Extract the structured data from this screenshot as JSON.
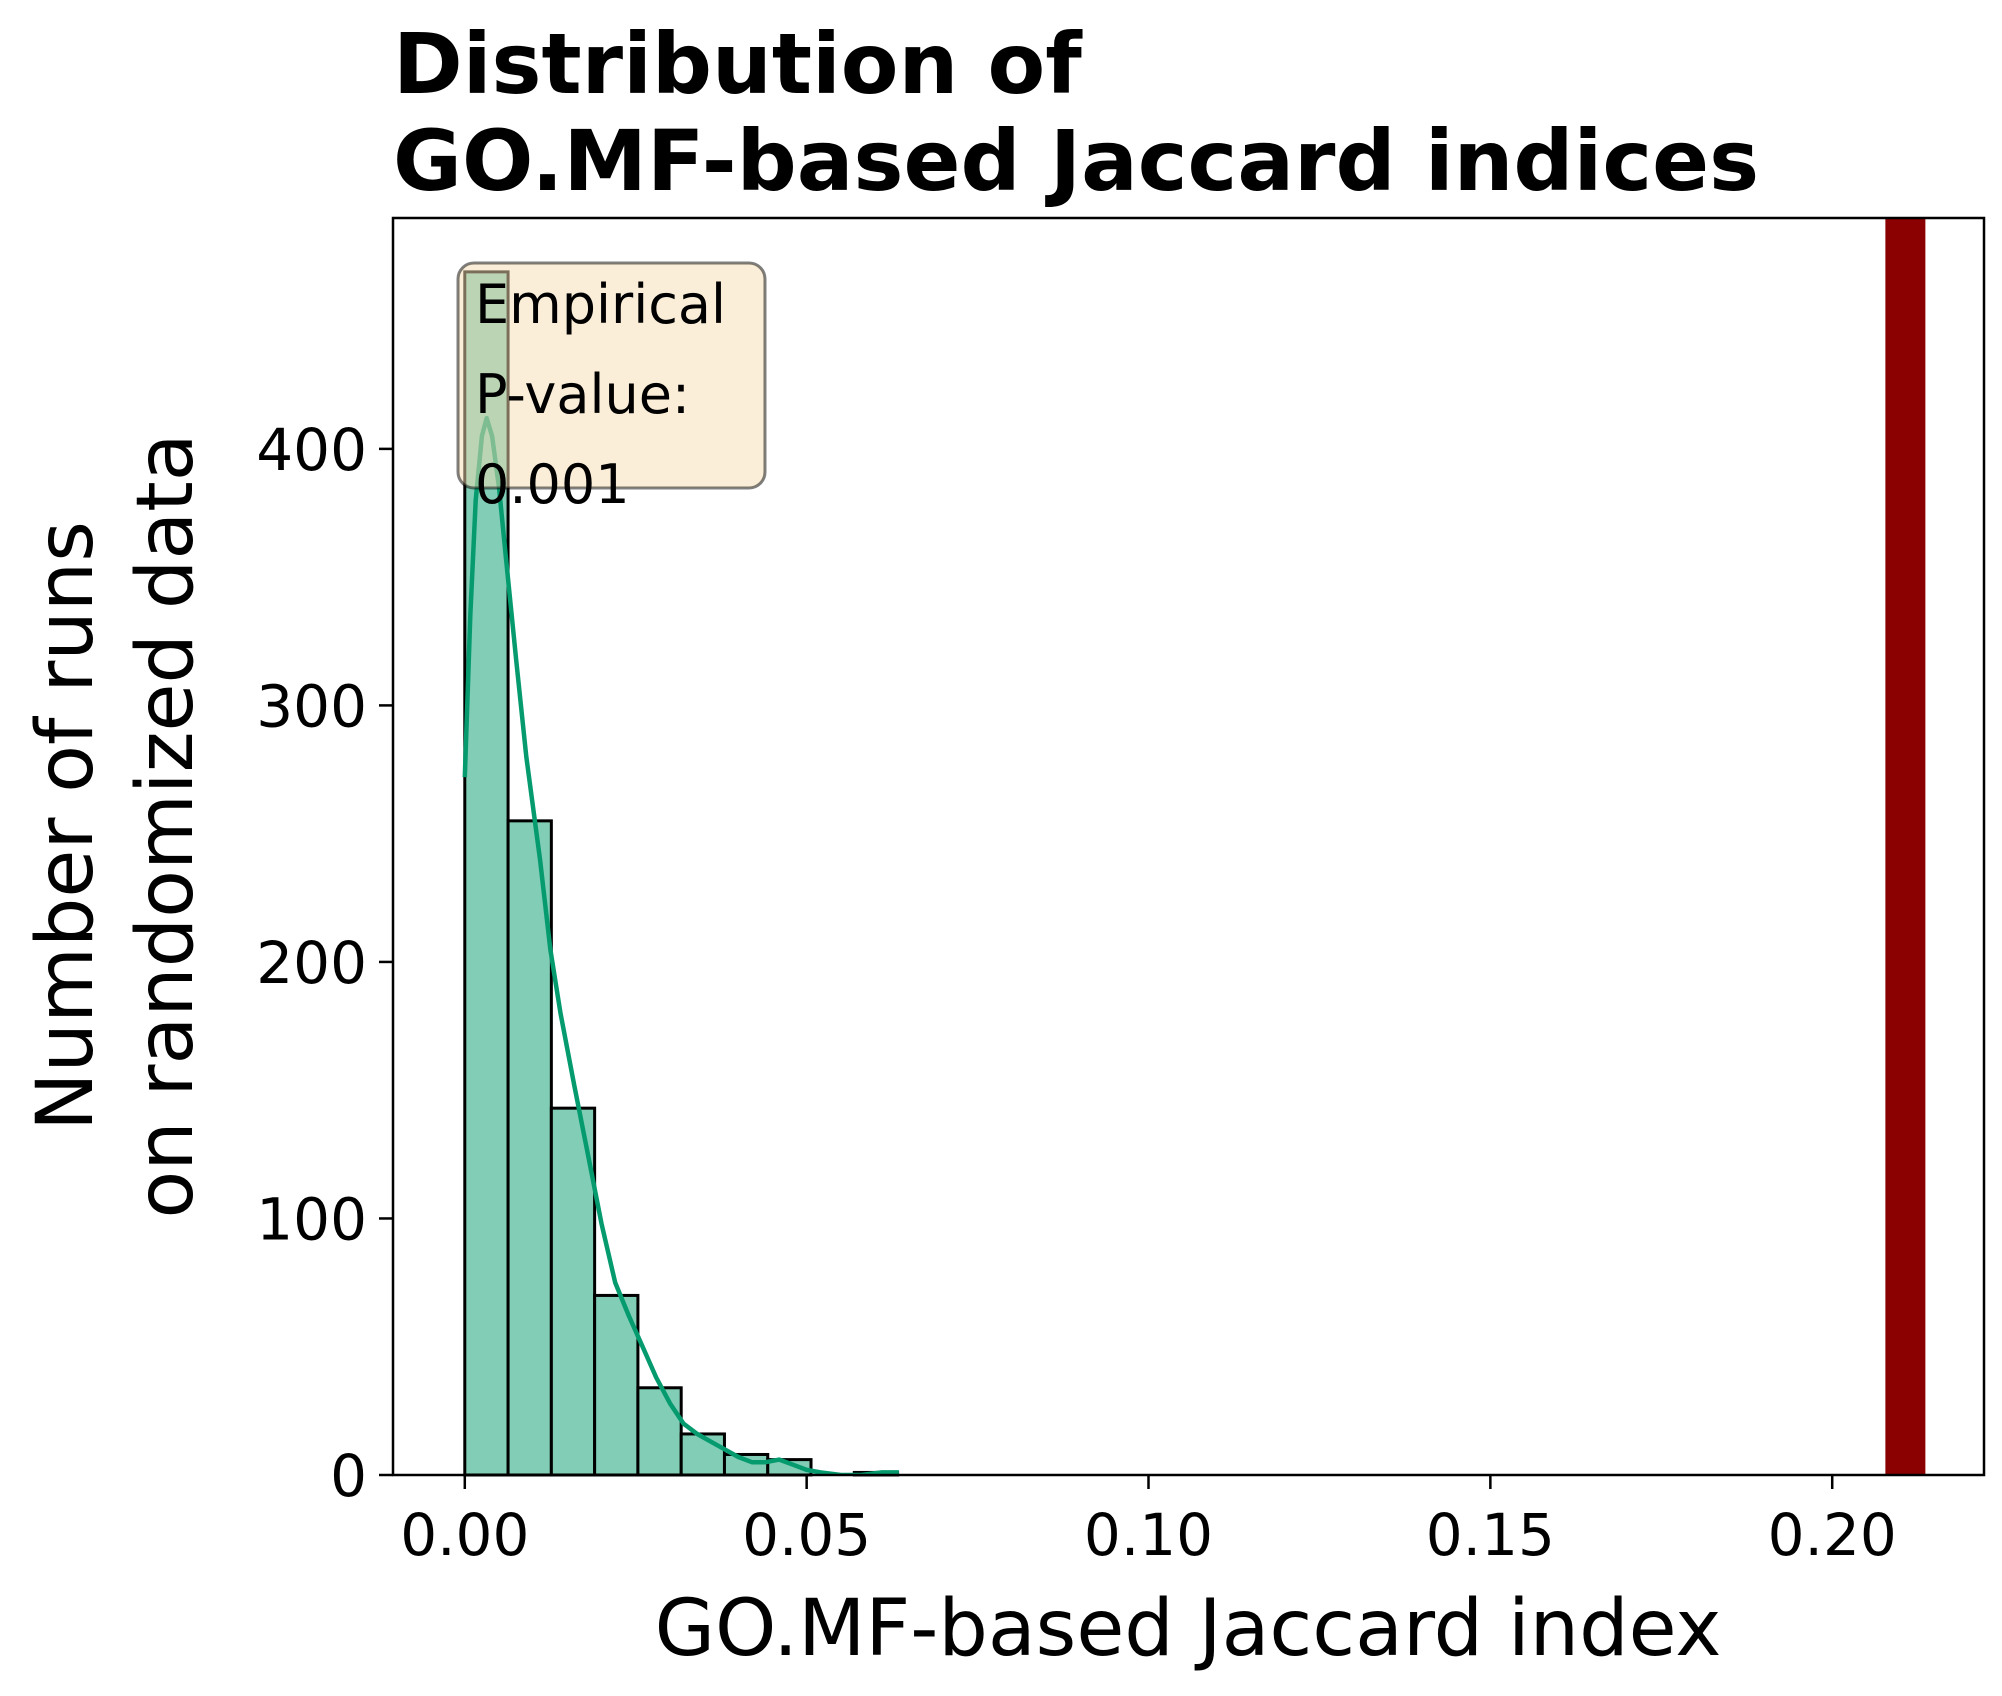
{
  "chart_data": {
    "type": "bar",
    "title_lines": [
      "Distribution of",
      "GO.MF-based Jaccard indices"
    ],
    "xlabel": "GO.MF-based Jaccard index",
    "ylabel_lines": [
      "Number of runs",
      "on randomized data"
    ],
    "xlim": [
      -0.0105,
      0.2222
    ],
    "ylim": [
      0,
      490
    ],
    "xticks": [
      0.0,
      0.05,
      0.1,
      0.15,
      0.2
    ],
    "xtick_labels": [
      "0.00",
      "0.05",
      "0.10",
      "0.15",
      "0.20"
    ],
    "yticks": [
      0,
      100,
      200,
      300,
      400
    ],
    "ytick_labels": [
      "0",
      "100",
      "200",
      "300",
      "400"
    ],
    "grid": false,
    "histogram": {
      "bin_width": 0.00633,
      "bin_edges": [
        0.0,
        0.00633,
        0.01266,
        0.01899,
        0.02532,
        0.03165,
        0.03798,
        0.04431,
        0.05064,
        0.05697,
        0.0633
      ],
      "counts": [
        469,
        255,
        143,
        70,
        34,
        16,
        8,
        6,
        0,
        1
      ],
      "fill_color": "#81cdb5",
      "edge_color": "#000000"
    },
    "kde": {
      "color": "#069b6f",
      "points": [
        [
          0.0,
          272
        ],
        [
          0.0008,
          335
        ],
        [
          0.0016,
          380
        ],
        [
          0.0025,
          405
        ],
        [
          0.0032,
          412
        ],
        [
          0.004,
          405
        ],
        [
          0.005,
          385
        ],
        [
          0.006,
          358
        ],
        [
          0.0075,
          318
        ],
        [
          0.009,
          280
        ],
        [
          0.011,
          240
        ],
        [
          0.0125,
          205
        ],
        [
          0.014,
          180
        ],
        [
          0.016,
          152
        ],
        [
          0.018,
          125
        ],
        [
          0.02,
          98
        ],
        [
          0.022,
          75
        ],
        [
          0.024,
          62
        ],
        [
          0.026,
          50
        ],
        [
          0.028,
          38
        ],
        [
          0.03,
          28
        ],
        [
          0.032,
          20
        ],
        [
          0.034,
          16
        ],
        [
          0.036,
          13
        ],
        [
          0.038,
          10
        ],
        [
          0.04,
          7
        ],
        [
          0.042,
          5
        ],
        [
          0.044,
          5
        ],
        [
          0.046,
          6
        ],
        [
          0.048,
          4
        ],
        [
          0.05,
          2
        ],
        [
          0.052,
          1
        ],
        [
          0.055,
          0
        ],
        [
          0.058,
          0
        ],
        [
          0.061,
          1
        ],
        [
          0.0635,
          1
        ]
      ]
    },
    "reference_line": {
      "x": 0.2107,
      "color": "#8b0000"
    },
    "annotation": {
      "lines": [
        "Empirical",
        "P-value:",
        "0.001"
      ],
      "box_color": "#f5deb3",
      "placement": "top-left"
    }
  }
}
